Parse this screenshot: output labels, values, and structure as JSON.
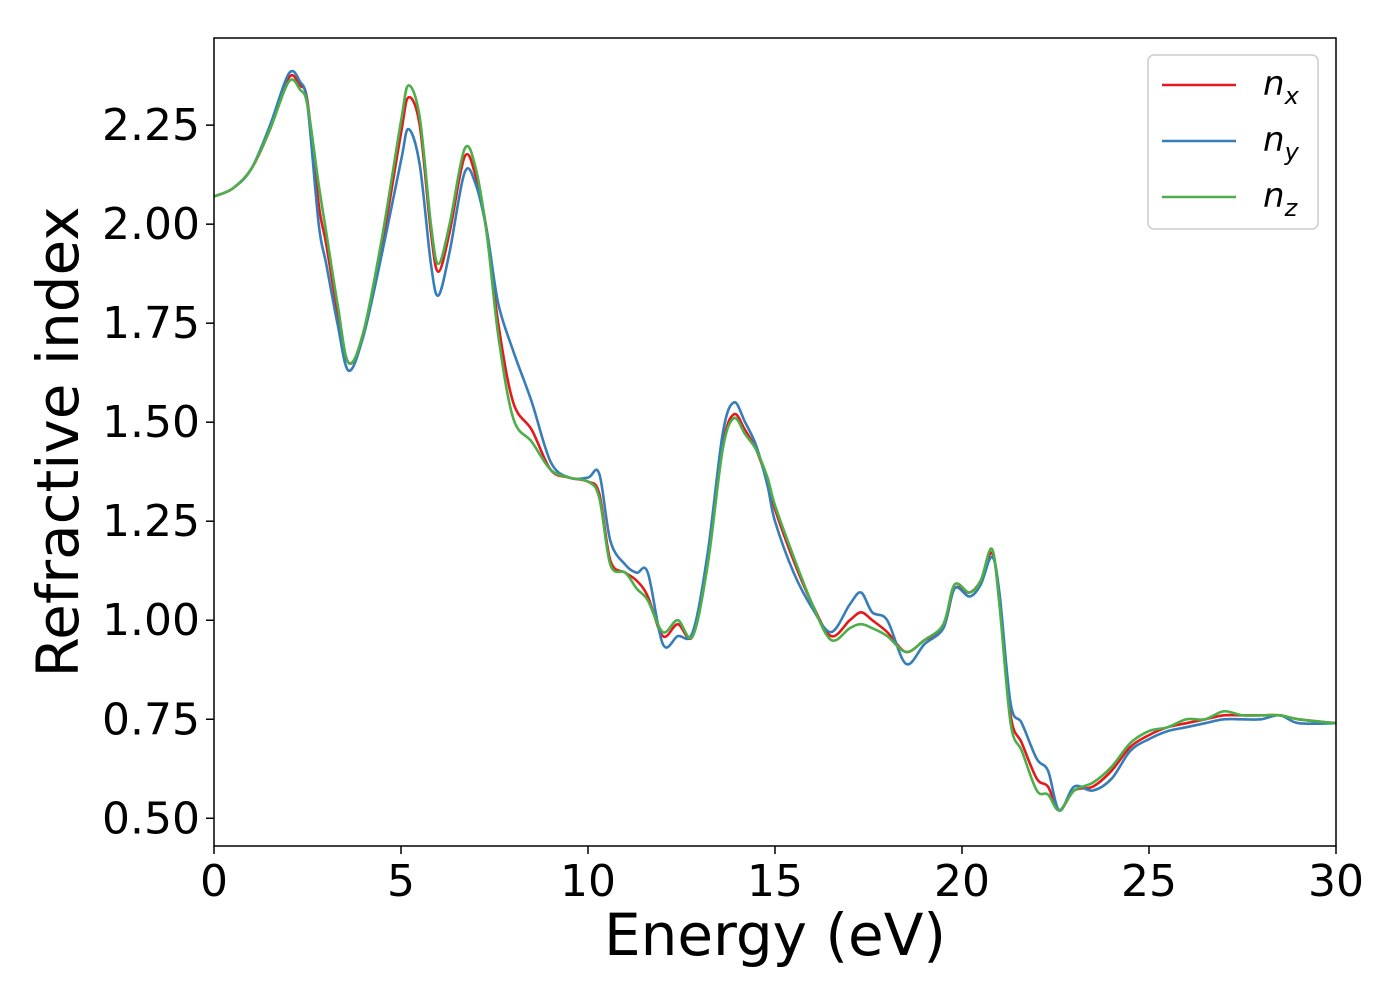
{
  "chart_data": {
    "type": "line",
    "xlabel": "Energy (eV)",
    "ylabel": "Refractive index",
    "xlim": [
      0,
      30
    ],
    "ylim": [
      0.43,
      2.47
    ],
    "xticks": [
      0,
      5,
      10,
      15,
      20,
      25,
      30
    ],
    "xtick_labels": [
      "0",
      "5",
      "10",
      "15",
      "20",
      "25",
      "30"
    ],
    "yticks": [
      0.5,
      0.75,
      1.0,
      1.25,
      1.5,
      1.75,
      2.0,
      2.25
    ],
    "ytick_labels": [
      "0.50",
      "0.75",
      "1.00",
      "1.25",
      "1.50",
      "1.75",
      "2.00",
      "2.25"
    ],
    "grid": false,
    "legend_position": "top-right",
    "series": [
      {
        "name": "n_x",
        "name_base": "n",
        "name_sub": "x",
        "color": "#e41a1c",
        "x": [
          0,
          0.5,
          1.0,
          1.5,
          2.0,
          2.3,
          2.5,
          2.8,
          3.0,
          3.3,
          3.6,
          4.0,
          4.5,
          5.0,
          5.2,
          5.5,
          5.8,
          6.0,
          6.3,
          6.7,
          7.0,
          7.3,
          7.6,
          8.0,
          8.5,
          9.0,
          9.5,
          10.0,
          10.3,
          10.6,
          11.0,
          11.3,
          11.6,
          12.0,
          12.4,
          12.8,
          13.2,
          13.6,
          13.9,
          14.2,
          14.5,
          14.8,
          15.0,
          15.5,
          16.0,
          16.5,
          17.0,
          17.3,
          17.6,
          18.0,
          18.5,
          19.0,
          19.5,
          19.8,
          20.2,
          20.5,
          20.8,
          21.0,
          21.3,
          21.6,
          22.0,
          22.3,
          22.6,
          23.0,
          23.5,
          24.0,
          24.5,
          25.0,
          25.5,
          26.0,
          26.5,
          27.0,
          27.5,
          28.0,
          28.5,
          29.0,
          30.0
        ],
        "y": [
          2.07,
          2.09,
          2.14,
          2.24,
          2.37,
          2.35,
          2.31,
          2.05,
          1.95,
          1.78,
          1.65,
          1.72,
          1.95,
          2.23,
          2.32,
          2.25,
          1.98,
          1.88,
          1.98,
          2.17,
          2.12,
          1.98,
          1.75,
          1.55,
          1.48,
          1.38,
          1.36,
          1.35,
          1.32,
          1.15,
          1.12,
          1.1,
          1.06,
          0.96,
          0.99,
          0.96,
          1.15,
          1.44,
          1.52,
          1.48,
          1.43,
          1.35,
          1.28,
          1.15,
          1.04,
          0.96,
          1.0,
          1.02,
          1.0,
          0.97,
          0.92,
          0.95,
          0.98,
          1.08,
          1.07,
          1.1,
          1.17,
          1.05,
          0.76,
          0.69,
          0.6,
          0.58,
          0.52,
          0.57,
          0.58,
          0.62,
          0.68,
          0.71,
          0.73,
          0.74,
          0.75,
          0.76,
          0.76,
          0.76,
          0.76,
          0.75,
          0.74
        ]
      },
      {
        "name": "n_y",
        "name_base": "n",
        "name_sub": "y",
        "color": "#377eb8",
        "x": [
          0,
          0.5,
          1.0,
          1.5,
          2.0,
          2.3,
          2.5,
          2.8,
          3.0,
          3.3,
          3.6,
          4.0,
          4.5,
          5.0,
          5.2,
          5.5,
          5.8,
          6.0,
          6.3,
          6.7,
          7.0,
          7.3,
          7.6,
          8.0,
          8.5,
          9.0,
          9.5,
          10.0,
          10.3,
          10.6,
          11.0,
          11.3,
          11.6,
          12.0,
          12.4,
          12.8,
          13.2,
          13.6,
          13.9,
          14.2,
          14.5,
          14.8,
          15.0,
          15.5,
          16.0,
          16.5,
          17.0,
          17.3,
          17.6,
          18.0,
          18.5,
          19.0,
          19.5,
          19.8,
          20.2,
          20.5,
          20.8,
          21.0,
          21.3,
          21.6,
          22.0,
          22.3,
          22.6,
          23.0,
          23.5,
          24.0,
          24.5,
          25.0,
          25.5,
          26.0,
          26.5,
          27.0,
          27.5,
          28.0,
          28.5,
          29.0,
          30.0
        ],
        "y": [
          2.07,
          2.09,
          2.14,
          2.25,
          2.38,
          2.36,
          2.3,
          2.0,
          1.9,
          1.75,
          1.63,
          1.72,
          1.93,
          2.16,
          2.24,
          2.15,
          1.9,
          1.82,
          1.93,
          2.13,
          2.1,
          1.98,
          1.8,
          1.68,
          1.55,
          1.4,
          1.36,
          1.36,
          1.37,
          1.2,
          1.14,
          1.12,
          1.12,
          0.94,
          0.96,
          0.97,
          1.17,
          1.47,
          1.55,
          1.5,
          1.44,
          1.34,
          1.25,
          1.12,
          1.03,
          0.97,
          1.04,
          1.07,
          1.02,
          1.0,
          0.89,
          0.94,
          0.98,
          1.08,
          1.06,
          1.09,
          1.16,
          1.07,
          0.79,
          0.74,
          0.65,
          0.62,
          0.52,
          0.58,
          0.57,
          0.6,
          0.67,
          0.7,
          0.72,
          0.73,
          0.74,
          0.75,
          0.75,
          0.75,
          0.76,
          0.74,
          0.74
        ]
      },
      {
        "name": "n_z",
        "name_base": "n",
        "name_sub": "z",
        "color": "#4daf4a",
        "x": [
          0,
          0.5,
          1.0,
          1.5,
          2.0,
          2.3,
          2.5,
          2.8,
          3.0,
          3.3,
          3.6,
          4.0,
          4.5,
          5.0,
          5.2,
          5.5,
          5.8,
          6.0,
          6.3,
          6.7,
          7.0,
          7.3,
          7.6,
          8.0,
          8.5,
          9.0,
          9.5,
          10.0,
          10.3,
          10.6,
          11.0,
          11.3,
          11.6,
          12.0,
          12.4,
          12.8,
          13.2,
          13.6,
          13.9,
          14.2,
          14.5,
          14.8,
          15.0,
          15.5,
          16.0,
          16.5,
          17.0,
          17.3,
          17.6,
          18.0,
          18.5,
          19.0,
          19.5,
          19.8,
          20.2,
          20.5,
          20.8,
          21.0,
          21.3,
          21.6,
          22.0,
          22.3,
          22.6,
          23.0,
          23.5,
          24.0,
          24.5,
          25.0,
          25.5,
          26.0,
          26.5,
          27.0,
          27.5,
          28.0,
          28.5,
          29.0,
          30.0
        ],
        "y": [
          2.07,
          2.09,
          2.14,
          2.24,
          2.36,
          2.34,
          2.3,
          2.1,
          1.98,
          1.8,
          1.65,
          1.73,
          1.97,
          2.26,
          2.35,
          2.27,
          2.0,
          1.9,
          2.0,
          2.19,
          2.14,
          1.97,
          1.72,
          1.51,
          1.45,
          1.38,
          1.36,
          1.35,
          1.31,
          1.14,
          1.12,
          1.08,
          1.05,
          0.97,
          1.0,
          0.96,
          1.14,
          1.43,
          1.51,
          1.47,
          1.43,
          1.36,
          1.29,
          1.16,
          1.04,
          0.95,
          0.98,
          0.99,
          0.98,
          0.96,
          0.92,
          0.95,
          0.99,
          1.09,
          1.07,
          1.1,
          1.18,
          1.04,
          0.74,
          0.67,
          0.57,
          0.56,
          0.52,
          0.57,
          0.59,
          0.63,
          0.69,
          0.72,
          0.73,
          0.75,
          0.75,
          0.77,
          0.76,
          0.76,
          0.76,
          0.75,
          0.74
        ]
      }
    ]
  }
}
